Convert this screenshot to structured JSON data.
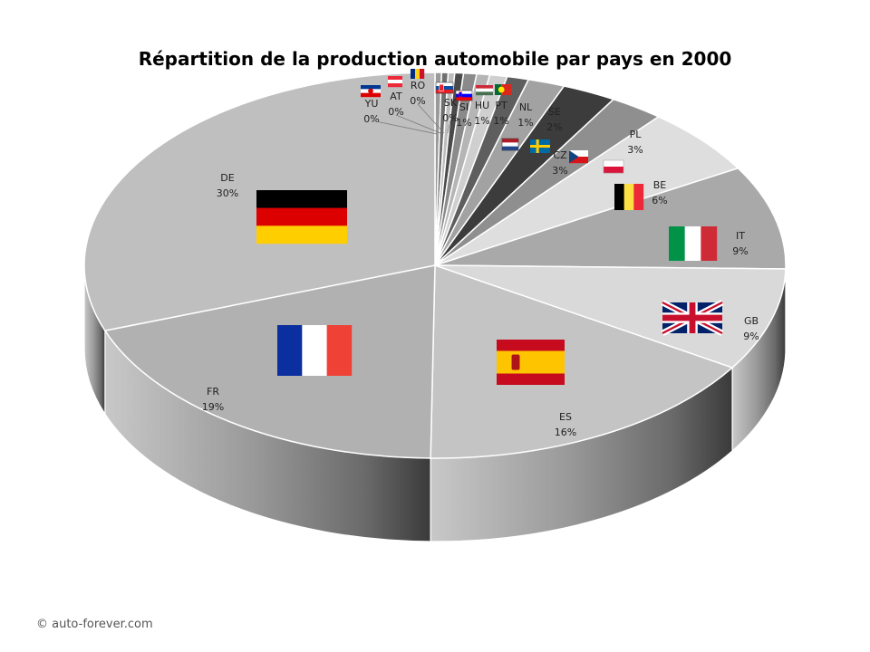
{
  "chart_data": {
    "type": "pie",
    "title": "Répartition de la production automobile par pays en 2000",
    "style": "3d",
    "slices": [
      {
        "label": "YU",
        "value_label": "0%",
        "value": 0.3,
        "color": "#9a9a9a",
        "flag": "flag-yugoslavia"
      },
      {
        "label": "AT",
        "value_label": "0%",
        "value": 0.3,
        "color": "#6e6e6e",
        "flag": "flag-austria"
      },
      {
        "label": "RO",
        "value_label": "0%",
        "value": 0.3,
        "color": "#bdbdbd",
        "flag": "flag-romania"
      },
      {
        "label": "SK",
        "value_label": "0%",
        "value": 0.4,
        "color": "#4a4a4a",
        "flag": "flag-slovakia"
      },
      {
        "label": "SI",
        "value_label": "1%",
        "value": 0.6,
        "color": "#8a8a8a",
        "flag": "flag-slovenia"
      },
      {
        "label": "HU",
        "value_label": "1%",
        "value": 0.6,
        "color": "#b5b5b5",
        "flag": "flag-hungary"
      },
      {
        "label": "PT",
        "value_label": "1%",
        "value": 0.8,
        "color": "#cfcfcf",
        "flag": "flag-portugal"
      },
      {
        "label": "NL",
        "value_label": "1%",
        "value": 1.0,
        "color": "#5e5e5e",
        "flag": "flag-netherlands"
      },
      {
        "label": "SE",
        "value_label": "2%",
        "value": 1.7,
        "color": "#a2a2a2",
        "flag": "flag-sweden"
      },
      {
        "label": "CZ",
        "value_label": "3%",
        "value": 2.5,
        "color": "#3c3c3c",
        "flag": "flag-czechia"
      },
      {
        "label": "PL",
        "value_label": "3%",
        "value": 2.5,
        "color": "#8f8f8f",
        "flag": "flag-poland"
      },
      {
        "label": "BE",
        "value_label": "6%",
        "value": 5.6,
        "color": "#dedede",
        "flag": "flag-belgium"
      },
      {
        "label": "IT",
        "value_label": "9%",
        "value": 8.7,
        "color": "#a9a9a9",
        "flag": "flag-italy"
      },
      {
        "label": "GB",
        "value_label": "9%",
        "value": 8.6,
        "color": "#d9d9d9",
        "flag": "flag-united-kingdom"
      },
      {
        "label": "ES",
        "value_label": "16%",
        "value": 16.3,
        "color": "#c4c4c4",
        "flag": "flag-spain"
      },
      {
        "label": "FR",
        "value_label": "19%",
        "value": 19.3,
        "color": "#b1b1b1",
        "flag": "flag-france"
      },
      {
        "label": "DE",
        "value_label": "30%",
        "value": 30.5,
        "color": "#bfbfbf",
        "flag": "flag-germany"
      }
    ]
  },
  "footer": {
    "copyright": "© auto-forever.com"
  }
}
